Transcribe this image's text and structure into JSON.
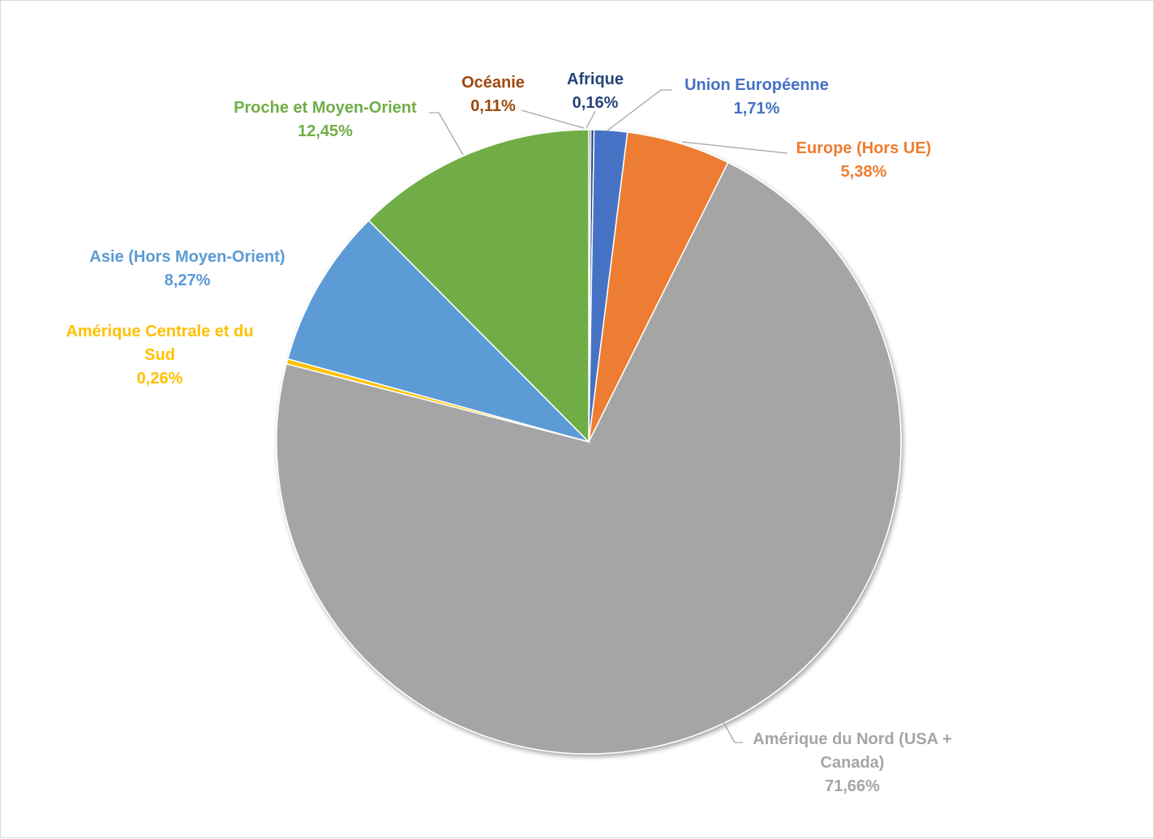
{
  "chart_data": {
    "type": "pie",
    "title": "",
    "start_angle_deg": 0,
    "direction": "clockwise",
    "legend": "none",
    "slices": [
      {
        "name": "Océanie",
        "value": 0.11,
        "label_lines": [
          "Océanie",
          "0,11%"
        ],
        "color": "#7f7f7f",
        "label_color": "#9e480e"
      },
      {
        "name": "Afrique",
        "value": 0.16,
        "label_lines": [
          "Afrique",
          "0,16%"
        ],
        "color": "#264478",
        "label_color": "#264478"
      },
      {
        "name": "Union Européenne",
        "value": 1.71,
        "label_lines": [
          "Union Européenne",
          "1,71%"
        ],
        "color": "#4472c4",
        "label_color": "#4472c4"
      },
      {
        "name": "Europe (Hors UE)",
        "value": 5.38,
        "label_lines": [
          "Europe (Hors UE)",
          "5,38%"
        ],
        "color": "#ed7d31",
        "label_color": "#ed7d31"
      },
      {
        "name": "Amérique du Nord (USA + Canada)",
        "value": 71.66,
        "label_lines": [
          "Amérique du Nord (USA +",
          "Canada)",
          "71,66%"
        ],
        "color": "#a5a5a5",
        "label_color": "#a5a5a5"
      },
      {
        "name": "Amérique Centrale et du Sud",
        "value": 0.26,
        "label_lines": [
          "Amérique Centrale et du",
          "Sud",
          "0,26%"
        ],
        "color": "#ffc000",
        "label_color": "#ffc000"
      },
      {
        "name": "Asie (Hors Moyen-Orient)",
        "value": 8.27,
        "label_lines": [
          "Asie (Hors Moyen-Orient)",
          "8,27%"
        ],
        "color": "#5b9bd5",
        "label_color": "#5b9bd5"
      },
      {
        "name": "Proche et Moyen-Orient",
        "value": 12.45,
        "label_lines": [
          "Proche et Moyen-Orient",
          "12,45%"
        ],
        "color": "#70ad47",
        "label_color": "#70ad47"
      }
    ]
  }
}
